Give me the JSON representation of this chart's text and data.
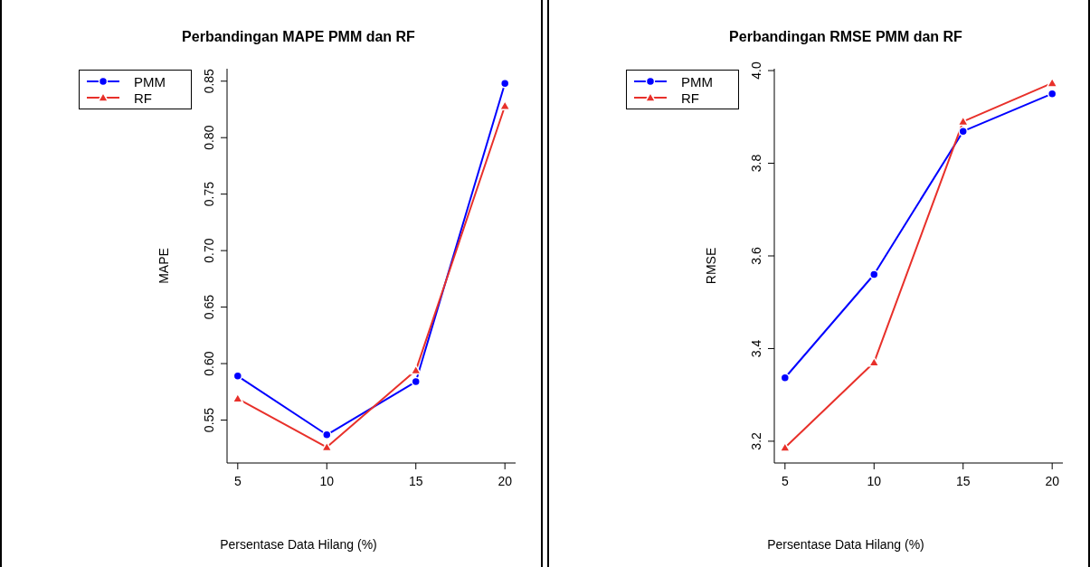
{
  "chart_data": [
    {
      "type": "line",
      "title": "Perbandingan MAPE PMM dan RF",
      "xlabel": "Persentase Data Hilang (%)",
      "ylabel": "MAPE",
      "x": [
        5,
        10,
        15,
        20
      ],
      "xlim": [
        4.4,
        20.6
      ],
      "xticks": [
        5,
        10,
        15,
        20
      ],
      "ylim": [
        0.512,
        0.861
      ],
      "yticks": [
        {
          "value": 0.55,
          "label": "0.55"
        },
        {
          "value": 0.6,
          "label": "0.60"
        },
        {
          "value": 0.65,
          "label": "0.65"
        },
        {
          "value": 0.7,
          "label": "0.70"
        },
        {
          "value": 0.75,
          "label": "0.75"
        },
        {
          "value": 0.8,
          "label": "0.80"
        },
        {
          "value": 0.85,
          "label": "0.85"
        }
      ],
      "legend": "top left",
      "grid": false,
      "series": [
        {
          "name": "PMM",
          "color": "#0000ff",
          "marker": "circle",
          "values": [
            0.589,
            0.537,
            0.584,
            0.848
          ]
        },
        {
          "name": "RF",
          "color": "#e8302a",
          "marker": "triangle",
          "values": [
            0.569,
            0.526,
            0.594,
            0.828
          ]
        }
      ]
    },
    {
      "type": "line",
      "title": "Perbandingan RMSE PMM dan RF",
      "xlabel": "Persentase Data Hilang (%)",
      "ylabel": "RMSE",
      "x": [
        5,
        10,
        15,
        20
      ],
      "xlim": [
        4.4,
        20.6
      ],
      "xticks": [
        5,
        10,
        15,
        20
      ],
      "ylim": [
        3.153,
        4.004
      ],
      "yticks": [
        {
          "value": 3.2,
          "label": "3.2"
        },
        {
          "value": 3.4,
          "label": "3.4"
        },
        {
          "value": 3.6,
          "label": "3.6"
        },
        {
          "value": 3.8,
          "label": "3.8"
        },
        {
          "value": 4.0,
          "label": "4.0"
        }
      ],
      "legend": "top left",
      "grid": false,
      "series": [
        {
          "name": "PMM",
          "color": "#0000ff",
          "marker": "circle",
          "values": [
            3.337,
            3.56,
            3.869,
            3.95
          ]
        },
        {
          "name": "RF",
          "color": "#e8302a",
          "marker": "triangle",
          "values": [
            3.186,
            3.37,
            3.89,
            3.973
          ]
        }
      ]
    }
  ]
}
